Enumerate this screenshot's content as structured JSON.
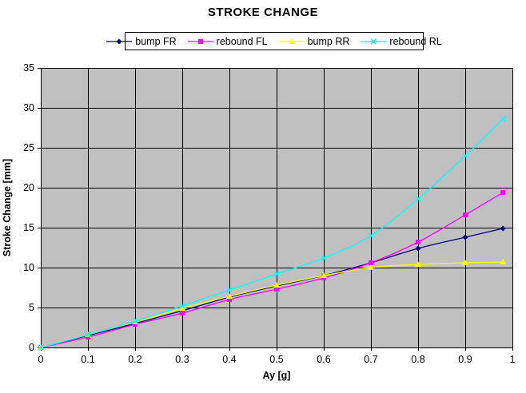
{
  "title": "STROKE CHANGE",
  "colors": {
    "plot_background": "#c0c0c0",
    "grid": "#000000",
    "text": "#000000",
    "series_bump_FR": "#000080",
    "series_rebound_FL": "#ff00ff",
    "series_bump_RR": "#ffff00",
    "series_rebound_RL": "#00ffff"
  },
  "chart_data": {
    "type": "line",
    "title": "STROKE CHANGE",
    "xlabel": "Ay [g]",
    "ylabel": "Stroke Change [mm]",
    "xlim": [
      0,
      1
    ],
    "ylim": [
      0,
      35
    ],
    "grid": true,
    "legend_position": "top",
    "plot_background": "#c0c0c0",
    "x_ticks": [
      0,
      0.1,
      0.2,
      0.3,
      0.4,
      0.5,
      0.6,
      0.7,
      0.8,
      0.9,
      1
    ],
    "x_tick_labels": [
      "0",
      "0.1",
      "0.2",
      "0.3",
      "0.4",
      "0.5",
      "0.6",
      "0.7",
      "0.8",
      "0.9",
      "1"
    ],
    "y_ticks": [
      0,
      5,
      10,
      15,
      20,
      25,
      30,
      35
    ],
    "y_tick_labels": [
      "0",
      "5",
      "10",
      "15",
      "20",
      "25",
      "30",
      "35"
    ],
    "x": [
      0,
      0.1,
      0.2,
      0.3,
      0.4,
      0.5,
      0.6,
      0.7,
      0.8,
      0.9,
      0.98
    ],
    "series": [
      {
        "name": "bump FR",
        "color": "#000080",
        "marker": "diamond",
        "values": [
          0,
          1.5,
          3.0,
          4.6,
          6.3,
          7.7,
          9.0,
          10.6,
          12.4,
          13.8,
          14.9
        ]
      },
      {
        "name": "rebound FL",
        "color": "#ff00ff",
        "marker": "square",
        "values": [
          0,
          1.3,
          2.9,
          4.3,
          6.0,
          7.3,
          8.7,
          10.6,
          13.2,
          16.6,
          19.4
        ]
      },
      {
        "name": "bump RR",
        "color": "#ffff00",
        "marker": "triangle",
        "values": [
          0,
          1.6,
          3.2,
          4.9,
          6.4,
          7.8,
          9.0,
          10.0,
          10.4,
          10.6,
          10.7
        ]
      },
      {
        "name": "rebound RL",
        "color": "#00ffff",
        "marker": "x",
        "values": [
          0,
          1.6,
          3.3,
          5.2,
          7.2,
          9.2,
          11.2,
          14.0,
          18.6,
          24.0,
          28.6
        ]
      }
    ]
  }
}
